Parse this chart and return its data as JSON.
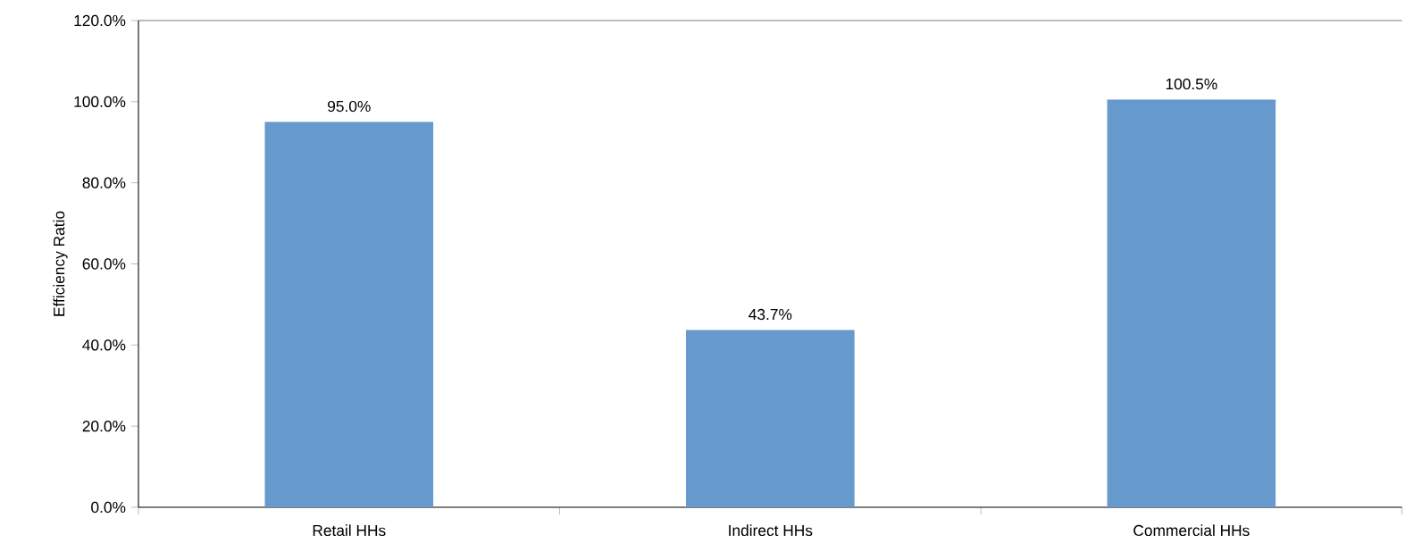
{
  "chart_data": {
    "type": "bar",
    "ylabel": "Efficiency Ratio",
    "categories": [
      "Retail HHs",
      "Indirect HHs",
      "Commercial HHs"
    ],
    "values": [
      95.0,
      43.7,
      100.5
    ],
    "value_labels": [
      "95.0%",
      "43.7%",
      "100.5%"
    ],
    "color": "#6699cc",
    "ylim": [
      0,
      120
    ],
    "yticks": [
      {
        "value": 0,
        "label": "0.0%"
      },
      {
        "value": 20,
        "label": "20.0%"
      },
      {
        "value": 40,
        "label": "40.0%"
      },
      {
        "value": 60,
        "label": "60.0%"
      },
      {
        "value": 80,
        "label": "80.0%"
      },
      {
        "value": 100,
        "label": "100.0%"
      },
      {
        "value": 120,
        "label": "120.0%"
      }
    ]
  }
}
